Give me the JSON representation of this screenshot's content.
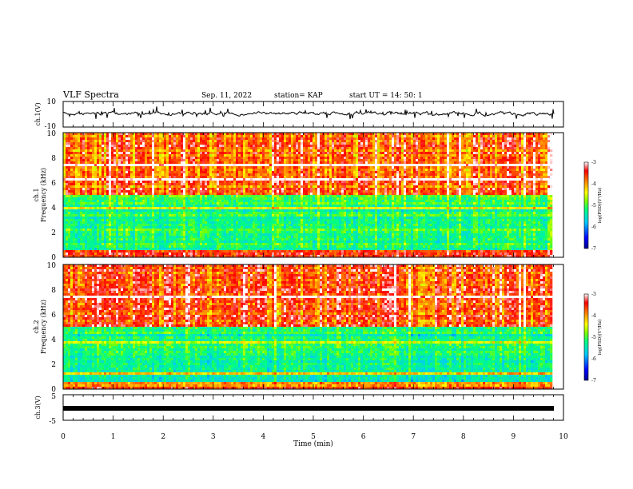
{
  "header": {
    "title": "VLF Spectra",
    "date": "Sep. 11, 2022",
    "station": "station= KAP",
    "start": "start UT = 14: 50: 1"
  },
  "x_axis": {
    "label": "Time (min)",
    "ticks": [
      "0",
      "1",
      "2",
      "3",
      "4",
      "5",
      "6",
      "7",
      "8",
      "9",
      "10"
    ]
  },
  "panels": {
    "ch1_waveform": {
      "ylabel": "ch.1(V)",
      "ticks": [
        "10",
        "-10"
      ]
    },
    "ch1_spectrum": {
      "ylabel_line1": "ch.1",
      "ylabel_line2": "Frequency (kHz)",
      "ticks": [
        "10",
        "8",
        "6",
        "4",
        "2",
        "0"
      ]
    },
    "ch2_spectrum": {
      "ylabel_line1": "ch.2",
      "ylabel_line2": "Frequency (kHz)",
      "ticks": [
        "10",
        "8",
        "6",
        "4",
        "2",
        "0"
      ]
    },
    "ch3_waveform": {
      "ylabel": "ch.3(V)",
      "ticks": [
        "5",
        "-5"
      ]
    }
  },
  "colorbar": {
    "label": "log(PSD)(V²/Hz)",
    "ticks": [
      "-3",
      "-4",
      "-5",
      "-6",
      "-7"
    ],
    "colors": [
      "#000090",
      "#0000ff",
      "#00c8ff",
      "#00ff80",
      "#7fff00",
      "#ffff00",
      "#ff8000",
      "#ff0000",
      "#ffffff"
    ]
  },
  "chart_data": [
    {
      "type": "line",
      "title": "ch.1(V)",
      "xlabel": "Time (min)",
      "ylabel": "ch.1(V)",
      "xlim": [
        0,
        10
      ],
      "ylim": [
        -10,
        10
      ],
      "series": [
        {
          "x": [
            0,
            0.5,
            1,
            1.5,
            2,
            2.5,
            3,
            3.5,
            4,
            4.5,
            5,
            5.5,
            6,
            6.5,
            7,
            7.5,
            8,
            8.5,
            9,
            9.5,
            9.8
          ],
          "values": [
            1,
            -2,
            2,
            -1,
            3,
            0,
            2,
            -1,
            1,
            2,
            -1,
            0,
            2,
            1,
            -2,
            1,
            0,
            -1,
            1,
            0,
            1
          ]
        }
      ]
    },
    {
      "type": "heatmap",
      "title": "ch.1",
      "xlabel": "Time (min)",
      "ylabel": "Frequency (kHz)",
      "xlim": [
        0,
        10
      ],
      "ylim": [
        0,
        10
      ],
      "zlim": [
        -7,
        -3
      ],
      "frequency_bands": [
        {
          "f_min": 0,
          "f_max": 0.5,
          "log_psd": -3.5
        },
        {
          "f_min": 0.5,
          "f_max": 5,
          "log_psd": -5.2
        },
        {
          "f_min": 5,
          "f_max": 10,
          "log_psd": -3.8
        }
      ]
    },
    {
      "type": "heatmap",
      "title": "ch.2",
      "xlabel": "Time (min)",
      "ylabel": "Frequency (kHz)",
      "xlim": [
        0,
        10
      ],
      "ylim": [
        0,
        10
      ],
      "zlim": [
        -7,
        -3
      ],
      "frequency_bands": [
        {
          "f_min": 0,
          "f_max": 0.5,
          "log_psd": -3.8
        },
        {
          "f_min": 0.5,
          "f_max": 5,
          "log_psd": -5.3
        },
        {
          "f_min": 5,
          "f_max": 10,
          "log_psd": -3.7
        }
      ]
    },
    {
      "type": "line",
      "title": "ch.3(V)",
      "xlabel": "Time (min)",
      "ylabel": "ch.3(V)",
      "xlim": [
        0,
        10
      ],
      "ylim": [
        -5,
        5
      ],
      "series": [
        {
          "x": [
            0,
            9.8
          ],
          "values": [
            -1,
            -1
          ]
        }
      ]
    }
  ]
}
